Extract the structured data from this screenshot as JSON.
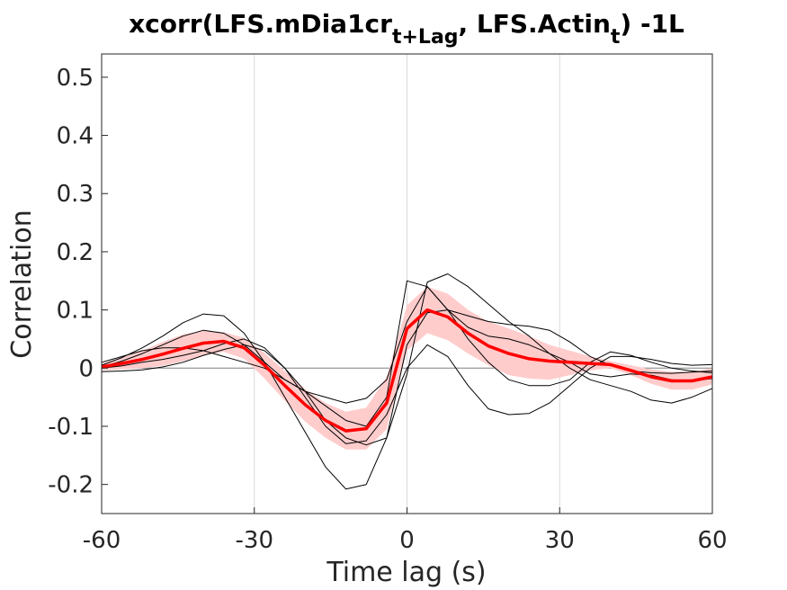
{
  "chart_data": {
    "type": "line",
    "title": {
      "prefix": "xcorr(LFS.mDia1cr",
      "sub1": "t+Lag",
      "middle": ", LFS.Actin",
      "sub2": "t",
      "suffix": ") -1L"
    },
    "xlabel": "Time lag (s)",
    "ylabel": "Correlation",
    "xlim": [
      -60,
      60
    ],
    "ylim": [
      -0.25,
      0.54
    ],
    "xticks": [
      -60,
      -30,
      0,
      30,
      60
    ],
    "xtick_labels": [
      "-60",
      "-30",
      "0",
      "30",
      "60"
    ],
    "yticks": [
      -0.2,
      -0.1,
      0,
      0.1,
      0.2,
      0.3,
      0.4,
      0.5
    ],
    "ytick_labels": [
      "-0.2",
      "-0.1",
      "0",
      "0.1",
      "0.2",
      "0.3",
      "0.4",
      "0.5"
    ],
    "grid": "x-only",
    "zero_line": true,
    "colors": {
      "mean": "#ff0000",
      "band": "#ffcccc",
      "individual": "#000000",
      "grid": "#d9d9d9",
      "zero": "#808080"
    },
    "x": [
      -60,
      -56,
      -52,
      -48,
      -44,
      -40,
      -36,
      -32,
      -28,
      -24,
      -20,
      -16,
      -12,
      -8,
      -4,
      0,
      4,
      8,
      12,
      16,
      20,
      24,
      28,
      32,
      36,
      40,
      44,
      48,
      52,
      56,
      60
    ],
    "mean": [
      0.002,
      0.008,
      0.015,
      0.024,
      0.034,
      0.043,
      0.046,
      0.035,
      0.005,
      -0.03,
      -0.063,
      -0.09,
      -0.108,
      -0.104,
      -0.06,
      0.068,
      0.1,
      0.088,
      0.06,
      0.038,
      0.025,
      0.016,
      0.012,
      0.01,
      0.008,
      0.006,
      -0.004,
      -0.015,
      -0.022,
      -0.022,
      -0.015
    ],
    "band_upper": [
      0.008,
      0.018,
      0.03,
      0.045,
      0.058,
      0.064,
      0.062,
      0.052,
      0.026,
      -0.005,
      -0.036,
      -0.06,
      -0.075,
      -0.068,
      -0.015,
      0.108,
      0.14,
      0.128,
      0.1,
      0.08,
      0.068,
      0.055,
      0.04,
      0.03,
      0.02,
      0.012,
      0.005,
      -0.002,
      -0.006,
      -0.006,
      0.0
    ],
    "band_lower": [
      -0.004,
      -0.002,
      0.0,
      0.004,
      0.012,
      0.022,
      0.028,
      0.016,
      -0.018,
      -0.056,
      -0.092,
      -0.12,
      -0.14,
      -0.14,
      -0.105,
      0.03,
      0.06,
      0.048,
      0.025,
      0.005,
      -0.012,
      -0.018,
      -0.02,
      -0.012,
      -0.004,
      0.0,
      -0.012,
      -0.027,
      -0.037,
      -0.037,
      -0.028
    ],
    "individual_series": [
      [
        0.005,
        0.018,
        0.035,
        0.055,
        0.078,
        0.093,
        0.09,
        0.06,
        0.01,
        -0.05,
        -0.11,
        -0.17,
        -0.208,
        -0.2,
        -0.12,
        0.04,
        0.095,
        0.1,
        0.09,
        0.08,
        0.075,
        0.072,
        0.065,
        0.045,
        0.02,
        0.005,
        -0.005,
        -0.008,
        -0.009,
        -0.007,
        -0.005
      ],
      [
        -0.006,
        -0.005,
        -0.003,
        0.002,
        0.01,
        0.022,
        0.032,
        0.04,
        0.03,
        0.0,
        -0.04,
        -0.09,
        -0.12,
        -0.132,
        -0.12,
        -0.01,
        0.148,
        0.162,
        0.14,
        0.11,
        0.08,
        0.055,
        0.025,
        0.0,
        -0.02,
        -0.03,
        -0.04,
        -0.055,
        -0.06,
        -0.05,
        -0.035
      ],
      [
        0.002,
        0.012,
        0.025,
        0.04,
        0.055,
        0.065,
        0.06,
        0.04,
        0.01,
        -0.02,
        -0.04,
        -0.05,
        -0.06,
        -0.052,
        -0.02,
        0.08,
        0.14,
        0.1,
        0.05,
        0.01,
        -0.02,
        -0.03,
        -0.03,
        -0.02,
        0.01,
        0.028,
        0.022,
        0.01,
        0.0,
        -0.005,
        -0.008
      ],
      [
        0.0,
        0.004,
        0.01,
        0.015,
        0.022,
        0.03,
        0.042,
        0.05,
        0.035,
        0.0,
        -0.05,
        -0.1,
        -0.13,
        -0.125,
        -0.08,
        0.0,
        0.04,
        0.02,
        -0.03,
        -0.07,
        -0.08,
        -0.078,
        -0.06,
        -0.03,
        0.0,
        0.02,
        0.02,
        0.015,
        0.008,
        0.005,
        0.006
      ],
      [
        0.01,
        0.02,
        0.03,
        0.035,
        0.035,
        0.03,
        0.02,
        0.01,
        0.0,
        -0.02,
        -0.04,
        -0.065,
        -0.09,
        -0.1,
        -0.05,
        0.15,
        0.14,
        0.1,
        0.07,
        0.055,
        0.05,
        0.04,
        0.025,
        0.01,
        -0.01,
        -0.015,
        -0.01,
        -0.012,
        -0.02,
        -0.022,
        -0.018
      ]
    ]
  }
}
